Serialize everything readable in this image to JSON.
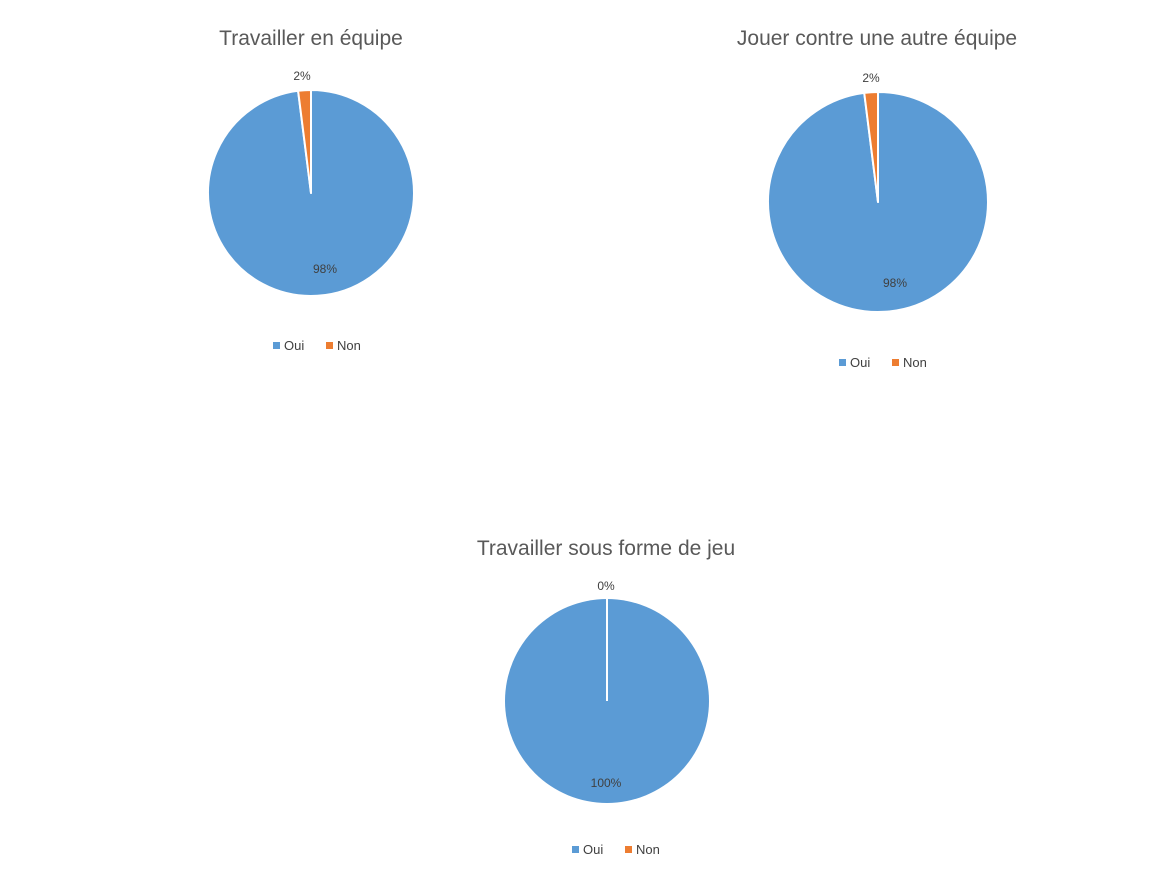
{
  "colors": {
    "oui": "#5B9BD5",
    "non": "#ED7D31",
    "title_text": "#595959",
    "label_text": "#404040"
  },
  "chart_data": [
    {
      "type": "pie",
      "title": "Travailler en équipe",
      "categories": [
        "Oui",
        "Non"
      ],
      "values": [
        98,
        2
      ],
      "data_labels": [
        "98%",
        "2%"
      ],
      "legend": {
        "position": "bottom",
        "entries": [
          "Oui",
          "Non"
        ]
      }
    },
    {
      "type": "pie",
      "title": "Jouer contre une autre équipe",
      "categories": [
        "Oui",
        "Non"
      ],
      "values": [
        98,
        2
      ],
      "data_labels": [
        "98%",
        "2%"
      ],
      "legend": {
        "position": "bottom",
        "entries": [
          "Oui",
          "Non"
        ]
      }
    },
    {
      "type": "pie",
      "title": "Travailler sous forme de jeu",
      "categories": [
        "Oui",
        "Non"
      ],
      "values": [
        100,
        0
      ],
      "data_labels": [
        "100%",
        "0%"
      ],
      "legend": {
        "position": "bottom",
        "entries": [
          "Oui",
          "Non"
        ]
      }
    }
  ]
}
